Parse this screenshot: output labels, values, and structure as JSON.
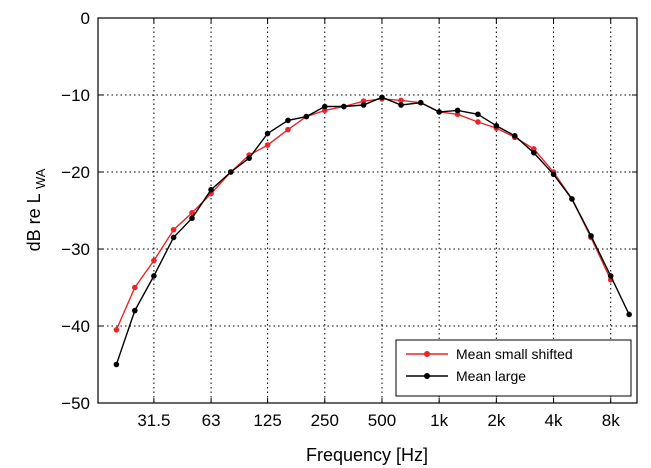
{
  "chart_data": {
    "type": "line",
    "xlabel": "Frequency [Hz]",
    "ylabel_main": "dB re L",
    "ylabel_sub": "WA",
    "ylim": [
      -50,
      0
    ],
    "yticks": [
      0,
      -10,
      -20,
      -30,
      -40,
      -50
    ],
    "ytick_labels": [
      "0",
      "−10",
      "−20",
      "−30",
      "−40",
      "−50"
    ],
    "xticks": [
      31.5,
      63,
      125,
      250,
      500,
      1000,
      2000,
      4000,
      8000
    ],
    "xtick_labels": [
      "31.5",
      "63",
      "125",
      "250",
      "500",
      "1k",
      "2k",
      "4k",
      "8k"
    ],
    "xlim": [
      16,
      11000
    ],
    "x_scale": "log",
    "grid": true,
    "legend_position": "bottom-right",
    "series": [
      {
        "name": "Mean small shifted",
        "color": "#e8262b",
        "x": [
          20,
          25,
          31.5,
          40,
          50,
          63,
          80,
          100,
          125,
          160,
          200,
          250,
          315,
          400,
          500,
          630,
          800,
          1000,
          1250,
          1600,
          2000,
          2500,
          3150,
          4000,
          5000,
          6300,
          8000
        ],
        "y": [
          -40.5,
          -35,
          -31.5,
          -27.5,
          -25.3,
          -22.8,
          -20,
          -17.8,
          -16.5,
          -14.5,
          -12.8,
          -12,
          -11.5,
          -10.8,
          -10.5,
          -10.7,
          -11,
          -12.2,
          -12.5,
          -13.5,
          -14.3,
          -15.5,
          -17,
          -20,
          -23.5,
          -28.5,
          -34
        ]
      },
      {
        "name": "Mean large",
        "color": "#000000",
        "x": [
          20,
          25,
          31.5,
          40,
          50,
          63,
          80,
          100,
          125,
          160,
          200,
          250,
          315,
          400,
          500,
          630,
          800,
          1000,
          1250,
          1600,
          2000,
          2500,
          3150,
          4000,
          5000,
          6300,
          8000,
          10000
        ],
        "y": [
          -45,
          -38,
          -33.5,
          -28.5,
          -26,
          -22.3,
          -20,
          -18.2,
          -15,
          -13.3,
          -12.8,
          -11.5,
          -11.5,
          -11.3,
          -10.3,
          -11.3,
          -11,
          -12.2,
          -12,
          -12.5,
          -14,
          -15.3,
          -17.5,
          -20.3,
          -23.5,
          -28.3,
          -33.5,
          -38.5
        ]
      }
    ]
  }
}
